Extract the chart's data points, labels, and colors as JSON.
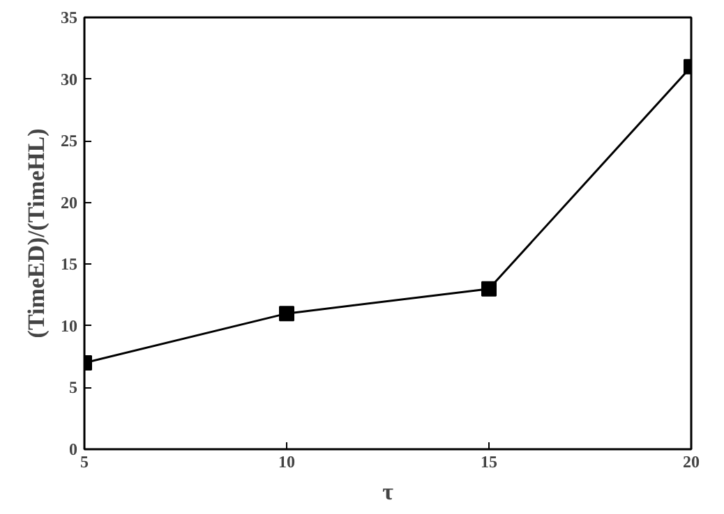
{
  "chart_data": {
    "type": "line",
    "xlabel": "τ",
    "ylabel": "(TimeED)/(TimeHL)",
    "x": [
      5,
      10,
      15,
      20
    ],
    "series": [
      {
        "color": "#000000",
        "values": [
          7,
          11,
          13,
          31
        ]
      }
    ],
    "xlim": [
      5,
      20
    ],
    "xticks": [
      5,
      10,
      15,
      20
    ],
    "ylim": [
      0,
      35
    ],
    "yticks": [
      0,
      5,
      10,
      15,
      20,
      25,
      30,
      35
    ],
    "marker": "square",
    "line_style": "solid",
    "grid": false
  }
}
